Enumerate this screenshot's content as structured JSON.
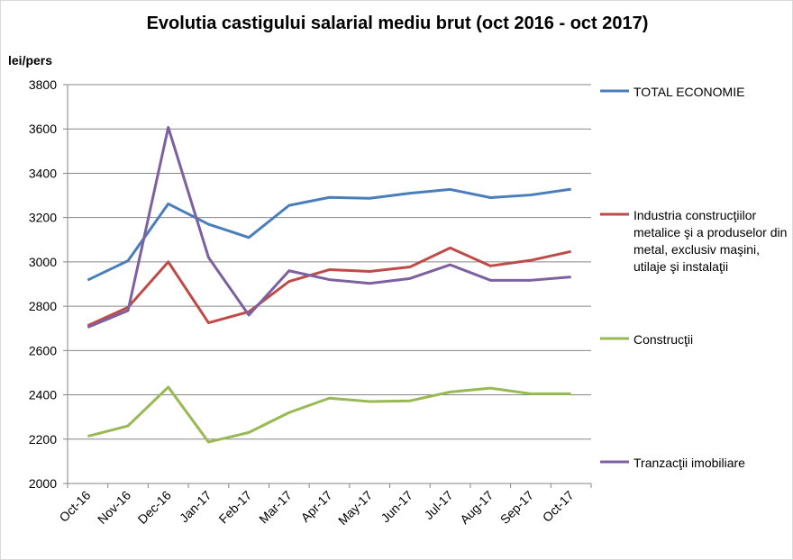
{
  "chart_data": {
    "type": "line",
    "title": "Evolutia castigului salarial mediu brut (oct 2016 - oct 2017)",
    "ylabel": "lei/pers",
    "xlabel": "",
    "ylim": [
      2000,
      3800
    ],
    "yticks": [
      2000,
      2200,
      2400,
      2600,
      2800,
      3000,
      3200,
      3400,
      3600,
      3800
    ],
    "grid": true,
    "legend": "right",
    "categories": [
      "Oct-16",
      "Nov-16",
      "Dec-16",
      "Jan-17",
      "Feb-17",
      "Mar-17",
      "Apr-17",
      "May-17",
      "Jun-17",
      "Jul-17",
      "Aug-17",
      "Sep-17",
      "Oct-17"
    ],
    "series": [
      {
        "name": "TOTAL ECONOMIE",
        "color": "#4a7ebb",
        "values": [
          2918,
          3005,
          3262,
          3170,
          3110,
          3255,
          3291,
          3287,
          3310,
          3327,
          3290,
          3302,
          3328
        ]
      },
      {
        "name": "Industria construcţiilor metalice şi a produselor din metal, exclusiv maşini, utilaje şi instalaţii",
        "color": "#be4b48",
        "values": [
          2712,
          2795,
          3000,
          2725,
          2775,
          2912,
          2965,
          2957,
          2977,
          3063,
          2982,
          3007,
          3047
        ]
      },
      {
        "name": "Construcţii",
        "color": "#98b954",
        "values": [
          2213,
          2260,
          2435,
          2187,
          2230,
          2320,
          2385,
          2370,
          2373,
          2413,
          2430,
          2405,
          2405
        ]
      },
      {
        "name": "Tranzacţii imobiliare",
        "color": "#7d60a0",
        "values": [
          2705,
          2780,
          3607,
          3020,
          2760,
          2960,
          2920,
          2903,
          2925,
          2987,
          2917,
          2917,
          2932
        ]
      }
    ]
  }
}
